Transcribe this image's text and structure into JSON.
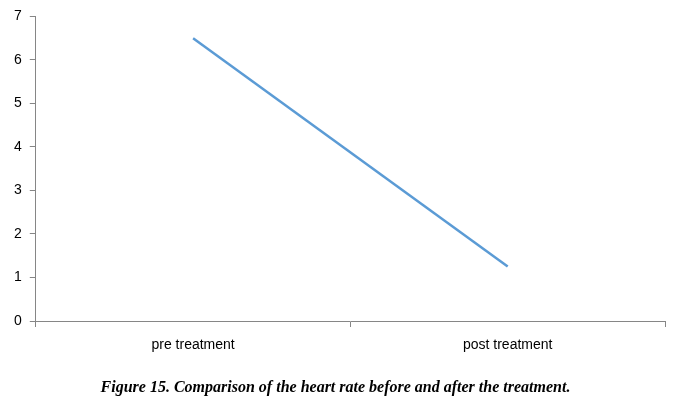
{
  "chart_data": {
    "type": "line",
    "title": "Figure 15. Comparison of the heart rate before and after the treatment.",
    "categories": [
      "pre treatment",
      "post treatment"
    ],
    "values": [
      6.5,
      1.25
    ],
    "color": "#5b9bd5",
    "marker": "none",
    "ylim": [
      0,
      7
    ],
    "yticks": [
      0,
      1,
      2,
      3,
      4,
      5,
      6,
      7
    ],
    "grid": false,
    "data_labels": false
  }
}
